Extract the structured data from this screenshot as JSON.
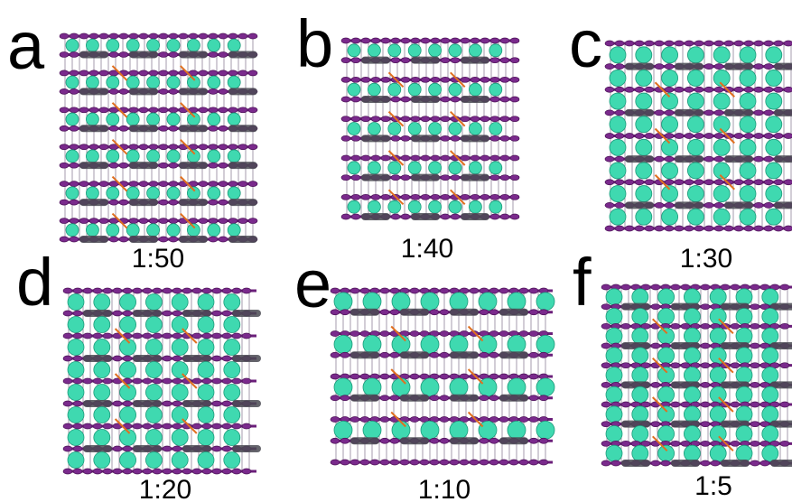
{
  "panels": [
    {
      "letter": "a",
      "ratio": "1:50"
    },
    {
      "letter": "b",
      "ratio": "1:40"
    },
    {
      "letter": "c",
      "ratio": "1:30"
    },
    {
      "letter": "d",
      "ratio": "1:20"
    },
    {
      "letter": "e",
      "ratio": "1:10"
    },
    {
      "letter": "f",
      "ratio": "1:5"
    }
  ]
}
